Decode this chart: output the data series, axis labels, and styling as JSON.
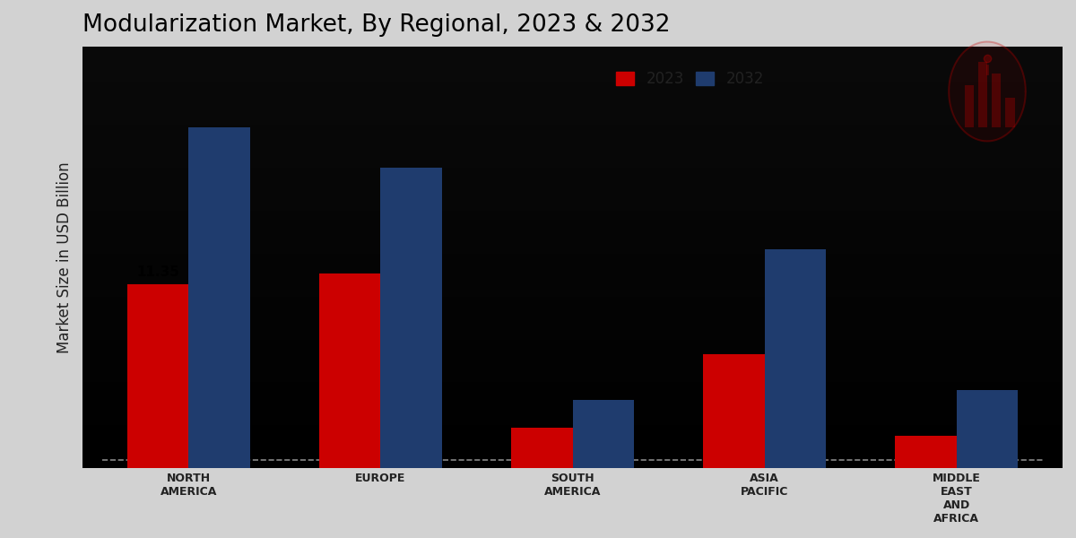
{
  "title": "Modularization Market, By Regional, 2023 & 2032",
  "ylabel": "Market Size in USD Billion",
  "categories": [
    "NORTH\nAMERICA",
    "EUROPE",
    "SOUTH\nAMERICA",
    "ASIA\nPACIFIC",
    "MIDDLE\nEAST\nAND\nAFRICA"
  ],
  "values_2023": [
    11.35,
    12.0,
    2.5,
    7.0,
    2.0
  ],
  "values_2032": [
    21.0,
    18.5,
    4.2,
    13.5,
    4.8
  ],
  "color_2023": "#cc0000",
  "color_2032": "#1f3c6e",
  "annotation_text": "11.35",
  "bar_width": 0.32,
  "ylim": [
    0,
    26
  ],
  "legend_labels": [
    "2023",
    "2032"
  ],
  "title_fontsize": 19,
  "axis_label_fontsize": 12,
  "tick_fontsize": 9,
  "bg_color_top": "#c8c8c8",
  "bg_color_bottom": "#e8e8e8"
}
